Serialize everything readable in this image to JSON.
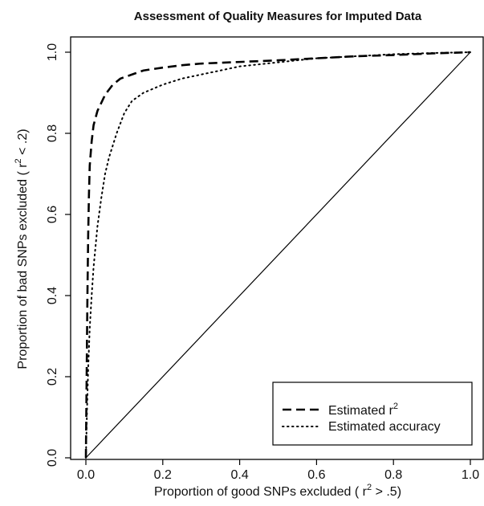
{
  "chart_data": {
    "type": "line",
    "title": "Assessment of Quality Measures for Imputed Data",
    "xlabel": {
      "prefix": "Proportion of good SNPs excluded ( r",
      "sup": "2",
      "suffix": " > .5)"
    },
    "ylabel": {
      "prefix": "Proportion of bad SNPs excluded ( r",
      "sup": "2",
      "suffix": " < .2)"
    },
    "xlim": [
      0,
      1
    ],
    "ylim": [
      0,
      1
    ],
    "x_ticks": [
      0.0,
      0.2,
      0.4,
      0.6,
      0.8,
      1.0
    ],
    "y_ticks": [
      0.0,
      0.2,
      0.4,
      0.6,
      0.8,
      1.0
    ],
    "x_tick_labels": [
      "0.0",
      "0.2",
      "0.4",
      "0.6",
      "0.8",
      "1.0"
    ],
    "y_tick_labels": [
      "0.0",
      "0.2",
      "0.4",
      "0.6",
      "0.8",
      "1.0"
    ],
    "grid": false,
    "legend": {
      "placement": "bottom-right",
      "entries": [
        {
          "label": "Estimated  r",
          "sup": "2",
          "style": "dashed"
        },
        {
          "label": "Estimated accuracy",
          "sup": "",
          "style": "dotted"
        }
      ]
    },
    "series": [
      {
        "name": "Estimated r2",
        "style": "dashed",
        "x": [
          0,
          0.002,
          0.004,
          0.006,
          0.008,
          0.01,
          0.015,
          0.02,
          0.03,
          0.04,
          0.05,
          0.07,
          0.09,
          0.12,
          0.15,
          0.2,
          0.25,
          0.3,
          0.4,
          0.5,
          0.6,
          0.7,
          0.8,
          0.9,
          1.0
        ],
        "y": [
          0,
          0.2,
          0.4,
          0.55,
          0.65,
          0.72,
          0.78,
          0.82,
          0.855,
          0.875,
          0.895,
          0.92,
          0.935,
          0.945,
          0.955,
          0.962,
          0.968,
          0.972,
          0.976,
          0.98,
          0.985,
          0.99,
          0.993,
          0.997,
          1.0
        ]
      },
      {
        "name": "Estimated accuracy",
        "style": "dotted",
        "x": [
          0,
          0.003,
          0.006,
          0.01,
          0.015,
          0.02,
          0.03,
          0.04,
          0.05,
          0.06,
          0.08,
          0.1,
          0.12,
          0.15,
          0.2,
          0.25,
          0.3,
          0.35,
          0.4,
          0.5,
          0.6,
          0.7,
          0.8,
          0.9,
          1.0
        ],
        "y": [
          0,
          0.12,
          0.22,
          0.32,
          0.4,
          0.47,
          0.57,
          0.64,
          0.7,
          0.74,
          0.8,
          0.85,
          0.88,
          0.9,
          0.92,
          0.935,
          0.945,
          0.955,
          0.965,
          0.975,
          0.985,
          0.99,
          0.995,
          0.998,
          1.0
        ]
      },
      {
        "name": "Reference diagonal",
        "style": "solid",
        "x": [
          0,
          1
        ],
        "y": [
          0,
          1
        ]
      }
    ]
  }
}
